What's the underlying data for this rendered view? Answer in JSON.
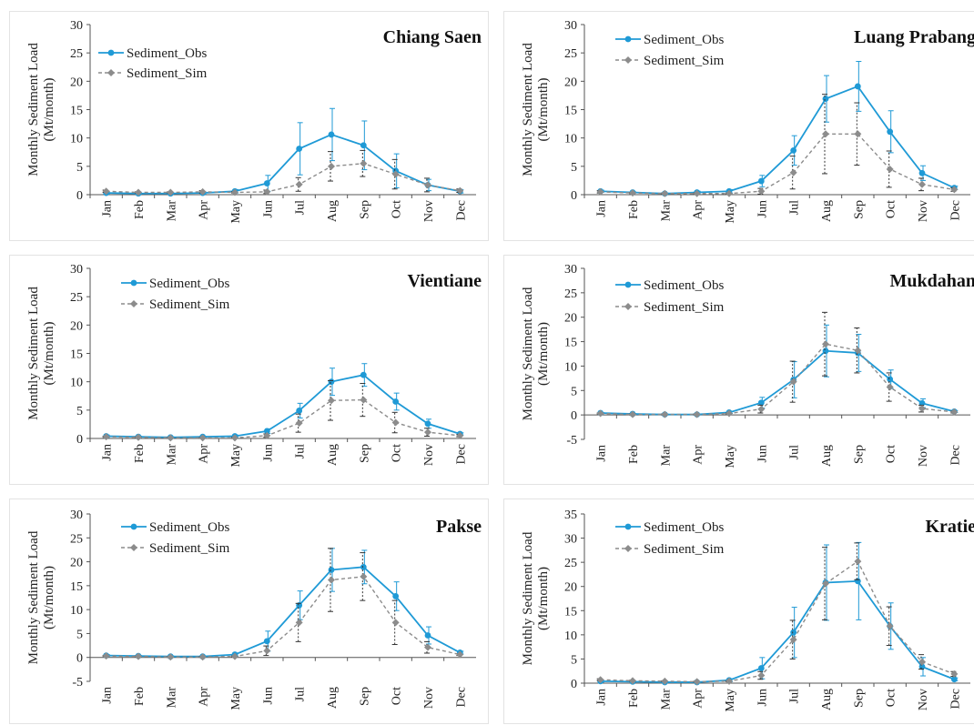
{
  "colors": {
    "obs": "#1f9ad6",
    "sim": "#8c8c8c",
    "axis": "#555555",
    "error": "#333333"
  },
  "chart_data": [
    {
      "type": "line",
      "title": "Chiang Saen",
      "ylabel_lines": [
        "Monthly Sediment Load",
        "(Mt/month)"
      ],
      "categories": [
        "Jan",
        "Feb",
        "Mar",
        "Apr",
        "May",
        "Jun",
        "Jul",
        "Aug",
        "Sep",
        "Oct",
        "Nov",
        "Dec"
      ],
      "ylim": [
        0,
        30
      ],
      "yticks": [
        0,
        5,
        10,
        15,
        20,
        25,
        30
      ],
      "legend_position": "top-left",
      "series": [
        {
          "name": "Sediment_Obs",
          "values": [
            0.3,
            0.2,
            0.2,
            0.3,
            0.6,
            2.0,
            8.1,
            10.6,
            8.7,
            4.2,
            1.7,
            0.6
          ],
          "err": [
            0.2,
            0.1,
            0.1,
            0.2,
            0.3,
            1.4,
            4.6,
            4.6,
            4.3,
            3.0,
            1.0,
            0.3
          ]
        },
        {
          "name": "Sediment_Sim",
          "values": [
            0.6,
            0.4,
            0.4,
            0.5,
            0.4,
            0.5,
            1.8,
            5.0,
            5.5,
            3.6,
            1.7,
            0.7
          ],
          "err": [
            0.2,
            0.1,
            0.1,
            0.2,
            0.1,
            0.3,
            1.2,
            2.6,
            2.3,
            2.6,
            1.2,
            0.3
          ]
        }
      ]
    },
    {
      "type": "line",
      "title": "Luang Prabang",
      "ylabel_lines": [
        "Monthly Sediment Load",
        "(Mt/month)"
      ],
      "categories": [
        "Jan",
        "Feb",
        "Mar",
        "Apr",
        "May",
        "Jun",
        "Jul",
        "Aug",
        "Sep",
        "Oct",
        "Nov",
        "Dec"
      ],
      "ylim": [
        0,
        30
      ],
      "yticks": [
        0,
        5,
        10,
        15,
        20,
        25,
        30
      ],
      "legend_position": "top-left",
      "series": [
        {
          "name": "Sediment_Obs",
          "values": [
            0.6,
            0.4,
            0.2,
            0.4,
            0.6,
            2.4,
            7.8,
            16.9,
            19.1,
            11.1,
            3.8,
            1.2
          ],
          "err": [
            0.2,
            0.1,
            0.1,
            0.2,
            0.3,
            1.0,
            2.6,
            4.1,
            4.4,
            3.7,
            1.3,
            0.3
          ]
        },
        {
          "name": "Sediment_Sim",
          "values": [
            0.5,
            0.3,
            0.2,
            0.2,
            0.2,
            0.6,
            3.9,
            10.7,
            10.7,
            4.5,
            1.8,
            0.9
          ],
          "err": [
            0.2,
            0.1,
            0.1,
            0.1,
            0.1,
            0.5,
            2.9,
            7.0,
            5.5,
            3.2,
            1.1,
            0.3
          ]
        }
      ]
    },
    {
      "type": "line",
      "title": "Vientiane",
      "ylabel_lines": [
        "Monthly Sediment Load",
        "(Mt/month)"
      ],
      "categories": [
        "Jan",
        "Feb",
        "Mar",
        "Apr",
        "May",
        "Jun",
        "Jul",
        "Aug",
        "Sep",
        "Oct",
        "Nov",
        "Dec"
      ],
      "ylim": [
        0,
        30
      ],
      "yticks": [
        0,
        5,
        10,
        15,
        20,
        25,
        30
      ],
      "legend_position": "top-left",
      "series": [
        {
          "name": "Sediment_Obs",
          "values": [
            0.4,
            0.3,
            0.2,
            0.3,
            0.4,
            1.3,
            4.9,
            10.0,
            11.2,
            6.5,
            2.6,
            0.8
          ],
          "err": [
            0.2,
            0.1,
            0.1,
            0.1,
            0.2,
            0.4,
            1.3,
            2.4,
            2.0,
            1.5,
            0.8,
            0.2
          ]
        },
        {
          "name": "Sediment_Sim",
          "values": [
            0.3,
            0.2,
            0.1,
            0.1,
            0.1,
            0.5,
            2.7,
            6.7,
            6.8,
            2.8,
            1.1,
            0.5
          ],
          "err": [
            0.1,
            0.1,
            0.1,
            0.1,
            0.1,
            0.3,
            1.6,
            3.5,
            2.9,
            1.8,
            0.7,
            0.2
          ]
        }
      ]
    },
    {
      "type": "line",
      "title": "Mukdahan",
      "ylabel_lines": [
        "Monthly Sediment Load",
        "(Mt/month)"
      ],
      "categories": [
        "Jan",
        "Feb",
        "Mar",
        "Apr",
        "May",
        "Jun",
        "Jul",
        "Aug",
        "Sep",
        "Oct",
        "Nov",
        "Dec"
      ],
      "ylim": [
        -5,
        30
      ],
      "yticks": [
        -5,
        0,
        5,
        10,
        15,
        20,
        25,
        30
      ],
      "legend_position": "top-left",
      "series": [
        {
          "name": "Sediment_Obs",
          "values": [
            0.4,
            0.2,
            0.1,
            0.1,
            0.5,
            2.5,
            7.2,
            13.1,
            12.7,
            7.3,
            2.4,
            0.7
          ],
          "err": [
            0.1,
            0.1,
            0.1,
            0.1,
            0.2,
            1.1,
            3.7,
            5.3,
            3.8,
            1.9,
            0.9,
            0.2
          ]
        },
        {
          "name": "Sediment_Sim",
          "values": [
            0.3,
            0.1,
            0.1,
            0.1,
            0.3,
            1.2,
            6.8,
            14.5,
            13.2,
            5.7,
            1.3,
            0.6
          ],
          "err": [
            0.1,
            0.1,
            0.1,
            0.1,
            0.1,
            0.8,
            4.2,
            6.5,
            4.6,
            2.9,
            0.7,
            0.2
          ]
        }
      ]
    },
    {
      "type": "line",
      "title": "Pakse",
      "ylabel_lines": [
        "Monthly Sediment Load",
        "(Mt/month)"
      ],
      "categories": [
        "Jan",
        "Feb",
        "Mar",
        "Apr",
        "May",
        "Jun",
        "Jul",
        "Aug",
        "Sep",
        "Oct",
        "Nov",
        "Dec"
      ],
      "ylim": [
        -5,
        30
      ],
      "yticks": [
        -5,
        0,
        5,
        10,
        15,
        20,
        25,
        30
      ],
      "legend_position": "top-left",
      "series": [
        {
          "name": "Sediment_Obs",
          "values": [
            0.4,
            0.3,
            0.2,
            0.2,
            0.6,
            3.4,
            10.9,
            18.3,
            18.9,
            12.8,
            4.6,
            1.0
          ],
          "err": [
            0.2,
            0.1,
            0.1,
            0.1,
            0.3,
            2.1,
            3.0,
            4.5,
            3.5,
            3.0,
            1.8,
            0.3
          ]
        },
        {
          "name": "Sediment_Sim",
          "values": [
            0.3,
            0.2,
            0.1,
            0.1,
            0.2,
            1.4,
            7.3,
            16.2,
            16.9,
            7.3,
            2.1,
            0.6
          ],
          "err": [
            0.1,
            0.1,
            0.1,
            0.1,
            0.1,
            1.0,
            4.0,
            6.6,
            5.0,
            4.6,
            1.2,
            0.2
          ]
        }
      ]
    },
    {
      "type": "line",
      "title": "Kratie",
      "ylabel_lines": [
        "Monthly Sediment Load",
        "(Mt/month)"
      ],
      "categories": [
        "Jan",
        "Feb",
        "Mar",
        "Apr",
        "May",
        "Jun",
        "Jul",
        "Aug",
        "Sep",
        "Oct",
        "Nov",
        "Dec"
      ],
      "ylim": [
        0,
        35
      ],
      "yticks": [
        0,
        5,
        10,
        15,
        20,
        25,
        30,
        35
      ],
      "legend_position": "top-left",
      "series": [
        {
          "name": "Sediment_Obs",
          "values": [
            0.4,
            0.3,
            0.2,
            0.2,
            0.6,
            3.1,
            10.5,
            20.8,
            21.1,
            11.8,
            3.4,
            0.8
          ],
          "err": [
            0.2,
            0.1,
            0.1,
            0.1,
            0.3,
            2.2,
            5.2,
            7.8,
            8.0,
            4.8,
            1.9,
            0.3
          ]
        },
        {
          "name": "Sediment_Sim",
          "values": [
            0.7,
            0.5,
            0.4,
            0.3,
            0.4,
            1.6,
            9.0,
            20.6,
            25.2,
            11.8,
            4.4,
            1.9
          ],
          "err": [
            0.2,
            0.1,
            0.1,
            0.1,
            0.1,
            0.8,
            4.0,
            7.5,
            3.8,
            4.0,
            1.5,
            0.5
          ]
        }
      ]
    }
  ]
}
